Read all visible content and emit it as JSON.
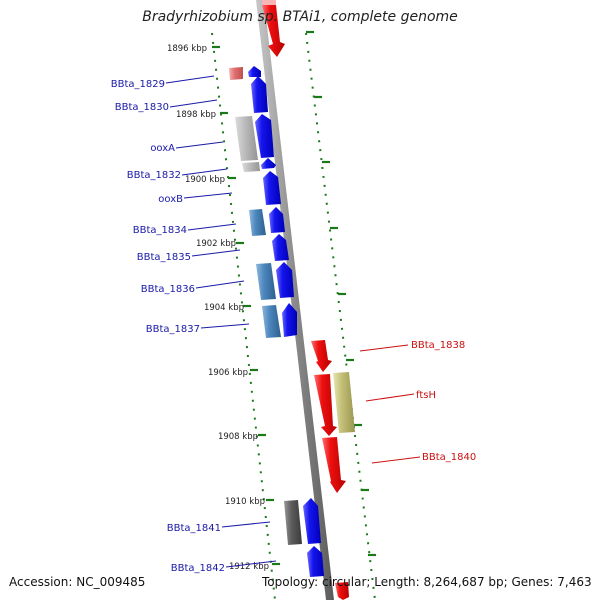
{
  "title": "Bradyrhizobium sp. BTAi1, complete genome",
  "footer": {
    "accession": "Accession: NC_009485",
    "summary": "Topology: circular; Length: 8,264,687 bp; Genes: 7,463"
  },
  "colors": {
    "backbone": "#8c8c8c",
    "tick": "#1a7a1a",
    "forward_gene": "#1010e8",
    "reverse_gene": "#e81010",
    "left_label": "#1a1aa8",
    "right_label": "#cc1010"
  },
  "scale_labels": [
    "1896 kbp",
    "1898 kbp",
    "1900 kbp",
    "1902 kbp",
    "1904 kbp",
    "1906 kbp",
    "1908 kbp",
    "1910 kbp",
    "1912 kbp"
  ],
  "left_labels": [
    "BBta_1829",
    "BBta_1830",
    "ooxA",
    "BBta_1832",
    "ooxB",
    "BBta_1834",
    "BBta_1835",
    "BBta_1836",
    "BBta_1837",
    "BBta_1841",
    "BBta_1842"
  ],
  "right_labels": [
    "BBta_1838",
    "ftsH",
    "BBta_1840"
  ]
}
